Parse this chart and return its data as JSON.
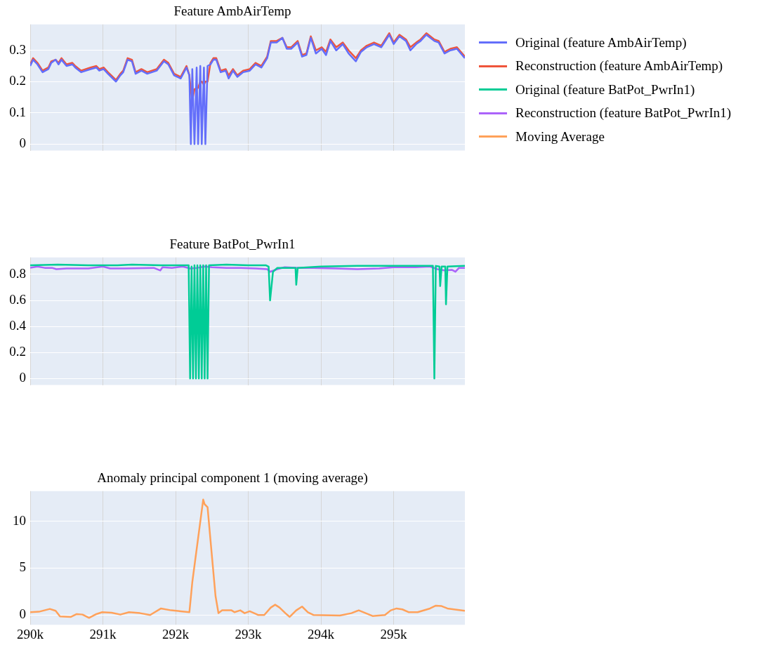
{
  "chart_data": [
    {
      "type": "line",
      "title": "Feature AmbAirTemp",
      "xlim": [
        290000,
        295980
      ],
      "xticks": [
        {
          "value": 290000,
          "label": null
        },
        {
          "value": 291000,
          "label": null
        },
        {
          "value": 292000,
          "label": null
        },
        {
          "value": 293000,
          "label": null
        },
        {
          "value": 294000,
          "label": null
        },
        {
          "value": 295000,
          "label": null
        }
      ],
      "ylim": [
        -0.021,
        0.383
      ],
      "yticks": [
        0,
        0.1,
        0.2,
        0.3
      ],
      "grid": true,
      "legend": "right",
      "tick_labels": "y",
      "marker": "none",
      "line_style": "solid",
      "x": [
        290000,
        290040,
        290100,
        290170,
        290250,
        290290,
        290350,
        290390,
        290430,
        290500,
        290580,
        290620,
        290700,
        290830,
        290910,
        290950,
        291010,
        291070,
        291180,
        291240,
        291280,
        291340,
        291400,
        291450,
        291530,
        291610,
        291740,
        291840,
        291900,
        291980,
        292070,
        292150,
        292190,
        292210,
        292230,
        292260,
        292290,
        292310,
        292340,
        292360,
        292390,
        292410,
        292440,
        292480,
        292520,
        292560,
        292620,
        292690,
        292730,
        292790,
        292850,
        292930,
        293020,
        293100,
        293180,
        293260,
        293310,
        293390,
        293470,
        293530,
        293590,
        293680,
        293740,
        293800,
        293860,
        293930,
        294010,
        294070,
        294130,
        294210,
        294300,
        294380,
        294480,
        294550,
        294630,
        294730,
        294830,
        294940,
        295000,
        295080,
        295170,
        295230,
        295310,
        295370,
        295450,
        295560,
        295620,
        295700,
        295780,
        295870,
        295980
      ],
      "series": [
        {
          "name": "Original (feature AmbAirTemp)",
          "color": "#636efa",
          "values": [
            0.25,
            0.27,
            0.255,
            0.23,
            0.24,
            0.26,
            0.27,
            0.255,
            0.27,
            0.25,
            0.255,
            0.245,
            0.23,
            0.24,
            0.245,
            0.235,
            0.24,
            0.225,
            0.2,
            0.22,
            0.23,
            0.27,
            0.265,
            0.225,
            0.235,
            0.225,
            0.235,
            0.265,
            0.255,
            0.22,
            0.21,
            0.245,
            0.22,
            0,
            0.24,
            0,
            0.245,
            0,
            0.25,
            0,
            0.245,
            0,
            0.25,
            0.255,
            0.27,
            0.27,
            0.23,
            0.235,
            0.21,
            0.235,
            0.215,
            0.23,
            0.235,
            0.255,
            0.245,
            0.275,
            0.325,
            0.325,
            0.34,
            0.305,
            0.305,
            0.325,
            0.28,
            0.285,
            0.34,
            0.29,
            0.305,
            0.285,
            0.33,
            0.3,
            0.32,
            0.29,
            0.265,
            0.295,
            0.31,
            0.32,
            0.31,
            0.35,
            0.32,
            0.345,
            0.33,
            0.3,
            0.32,
            0.33,
            0.35,
            0.33,
            0.325,
            0.29,
            0.3,
            0.305,
            0.275
          ]
        },
        {
          "name": "Reconstruction (feature AmbAirTemp)",
          "color": "#ef553b",
          "values": [
            0.255,
            0.275,
            0.26,
            0.235,
            0.245,
            0.265,
            0.27,
            0.26,
            0.275,
            0.255,
            0.26,
            0.25,
            0.235,
            0.245,
            0.25,
            0.24,
            0.245,
            0.23,
            0.205,
            0.225,
            0.235,
            0.275,
            0.27,
            0.23,
            0.24,
            0.23,
            0.24,
            0.27,
            0.26,
            0.225,
            0.215,
            0.25,
            0.22,
            0.17,
            0.14,
            0.175,
            0.18,
            0.18,
            0.2,
            0.2,
            0.19,
            0.2,
            0.2,
            0.26,
            0.275,
            0.275,
            0.235,
            0.24,
            0.22,
            0.24,
            0.22,
            0.235,
            0.24,
            0.26,
            0.25,
            0.28,
            0.33,
            0.33,
            0.34,
            0.31,
            0.31,
            0.33,
            0.285,
            0.29,
            0.345,
            0.3,
            0.31,
            0.295,
            0.335,
            0.31,
            0.325,
            0.3,
            0.275,
            0.3,
            0.315,
            0.325,
            0.315,
            0.355,
            0.325,
            0.35,
            0.335,
            0.31,
            0.325,
            0.335,
            0.355,
            0.335,
            0.33,
            0.295,
            0.305,
            0.31,
            0.28
          ]
        }
      ]
    },
    {
      "type": "line",
      "title": "Feature BatPot_PwrIn1",
      "xlim": [
        290000,
        295980
      ],
      "xticks": [
        {
          "value": 290000,
          "label": null
        },
        {
          "value": 291000,
          "label": null
        },
        {
          "value": 292000,
          "label": null
        },
        {
          "value": 293000,
          "label": null
        },
        {
          "value": 294000,
          "label": null
        },
        {
          "value": 295000,
          "label": null
        }
      ],
      "ylim": [
        -0.05,
        0.93
      ],
      "yticks": [
        0,
        0.2,
        0.4,
        0.6,
        0.8
      ],
      "grid": true,
      "legend": "right",
      "tick_labels": "y",
      "marker": "none",
      "line_style": "solid",
      "series": [
        {
          "name": "Original (feature BatPot_PwrIn1)",
          "color": "#00cc96",
          "x": [
            290000,
            290380,
            290800,
            291200,
            291400,
            291800,
            292100,
            292180,
            292200,
            292220,
            292240,
            292260,
            292280,
            292300,
            292320,
            292340,
            292360,
            292380,
            292400,
            292420,
            292440,
            292460,
            292700,
            293000,
            293240,
            293280,
            293300,
            293340,
            293400,
            293600,
            293650,
            293660,
            293680,
            294000,
            294500,
            295000,
            295540,
            295560,
            295580,
            295630,
            295640,
            295660,
            295710,
            295720,
            295740,
            295980
          ],
          "values": [
            0.87,
            0.875,
            0.87,
            0.87,
            0.875,
            0.87,
            0.87,
            0.87,
            0,
            0.86,
            0,
            0.87,
            0,
            0.87,
            0,
            0.87,
            0,
            0.87,
            0,
            0.87,
            0,
            0.87,
            0.875,
            0.87,
            0.87,
            0.86,
            0.6,
            0.82,
            0.85,
            0.85,
            0.85,
            0.72,
            0.85,
            0.86,
            0.865,
            0.865,
            0.865,
            0,
            0.865,
            0.86,
            0.71,
            0.86,
            0.86,
            0.57,
            0.86,
            0.865
          ]
        },
        {
          "name": "Reconstruction (feature BatPot_PwrIn1)",
          "color": "#ab63fa",
          "x": [
            290000,
            290100,
            290200,
            290300,
            290360,
            290500,
            290800,
            291000,
            291100,
            291300,
            291700,
            291790,
            291820,
            291950,
            292100,
            292200,
            292300,
            292400,
            292500,
            292700,
            292900,
            293100,
            293260,
            293300,
            293400,
            293500,
            293700,
            293900,
            294200,
            294500,
            294800,
            295000,
            295300,
            295500,
            295600,
            295700,
            295800,
            295850,
            295900,
            295980
          ],
          "values": [
            0.85,
            0.86,
            0.85,
            0.85,
            0.84,
            0.845,
            0.845,
            0.86,
            0.845,
            0.845,
            0.85,
            0.83,
            0.855,
            0.85,
            0.86,
            0.845,
            0.85,
            0.86,
            0.855,
            0.85,
            0.85,
            0.845,
            0.84,
            0.82,
            0.84,
            0.855,
            0.85,
            0.85,
            0.845,
            0.84,
            0.845,
            0.855,
            0.855,
            0.86,
            0.84,
            0.83,
            0.835,
            0.82,
            0.85,
            0.85
          ]
        }
      ]
    },
    {
      "type": "line",
      "title": "Anomaly principal component 1 (moving average)",
      "xlim": [
        290000,
        295980
      ],
      "xticks": [
        {
          "value": 290000,
          "label": "290k"
        },
        {
          "value": 291000,
          "label": "291k"
        },
        {
          "value": 292000,
          "label": "292k"
        },
        {
          "value": 293000,
          "label": "293k"
        },
        {
          "value": 294000,
          "label": "294k"
        },
        {
          "value": 295000,
          "label": "295k"
        }
      ],
      "ylim": [
        -1.04,
        13.2
      ],
      "yticks": [
        0,
        5,
        10
      ],
      "grid": true,
      "legend": "right",
      "marker": "none",
      "line_style": "solid",
      "x": [
        290000,
        290120,
        290270,
        290350,
        290410,
        290560,
        290640,
        290720,
        290810,
        290910,
        290990,
        291120,
        291240,
        291360,
        291510,
        291650,
        291800,
        291940,
        292070,
        292190,
        292230,
        292380,
        292400,
        292440,
        292480,
        292550,
        292590,
        292640,
        292770,
        292810,
        292890,
        292950,
        293020,
        293140,
        293220,
        293310,
        293370,
        293430,
        293510,
        293570,
        293660,
        293740,
        293820,
        293900,
        294260,
        294420,
        294520,
        294710,
        294880,
        294960,
        295040,
        295120,
        295210,
        295330,
        295500,
        295580,
        295660,
        295740,
        295830,
        295980
      ],
      "series": [
        {
          "name": "Moving Average",
          "color": "#ffa15a",
          "values": [
            0.3,
            0.35,
            0.65,
            0.45,
            -0.15,
            -0.2,
            0.1,
            0.05,
            -0.3,
            0.1,
            0.3,
            0.25,
            0.05,
            0.3,
            0.2,
            0,
            0.7,
            0.5,
            0.4,
            0.3,
            3.5,
            12.3,
            11.8,
            11.5,
            8,
            2,
            0.2,
            0.5,
            0.5,
            0.3,
            0.5,
            0.2,
            0.4,
            0,
            0,
            0.8,
            1.1,
            0.8,
            0.2,
            -0.2,
            0.5,
            0.9,
            0.3,
            0,
            -0.05,
            0.2,
            0.5,
            -0.1,
            0,
            0.5,
            0.7,
            0.6,
            0.3,
            0.3,
            0.7,
            1,
            0.95,
            0.7,
            0.6,
            0.45
          ]
        }
      ]
    }
  ]
}
